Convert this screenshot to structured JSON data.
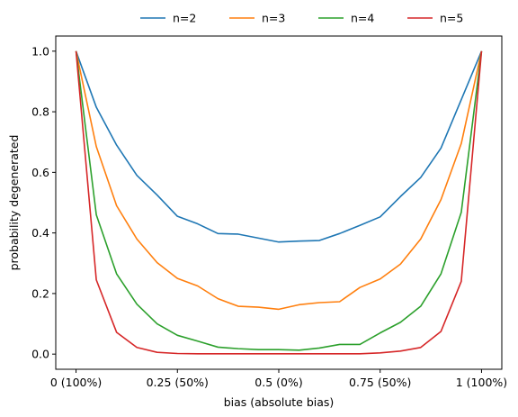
{
  "chart_data": {
    "type": "line",
    "title": "",
    "xlabel": "bias (absolute bias)",
    "ylabel": "probability degenerated",
    "xlim": [
      -0.05,
      1.05
    ],
    "ylim": [
      -0.05,
      1.05
    ],
    "xticks": [
      {
        "value": 0,
        "label": "0 (100%)"
      },
      {
        "value": 0.25,
        "label": "0.25 (50%)"
      },
      {
        "value": 0.5,
        "label": "0.5 (0%)"
      },
      {
        "value": 0.75,
        "label": "0.75 (50%)"
      },
      {
        "value": 1,
        "label": "1 (100%)"
      }
    ],
    "yticks": [
      {
        "value": 0,
        "label": "0.0"
      },
      {
        "value": 0.2,
        "label": "0.2"
      },
      {
        "value": 0.4,
        "label": "0.4"
      },
      {
        "value": 0.6,
        "label": "0.6"
      },
      {
        "value": 0.8,
        "label": "0.8"
      },
      {
        "value": 1,
        "label": "1.0"
      }
    ],
    "grid": false,
    "legend_position": "top-center",
    "x": [
      0,
      0.05,
      0.1,
      0.15,
      0.2,
      0.25,
      0.3,
      0.35,
      0.4,
      0.45,
      0.5,
      0.55,
      0.6,
      0.65,
      0.7,
      0.75,
      0.8,
      0.85,
      0.9,
      0.95,
      1.0
    ],
    "series": [
      {
        "name": "n=2",
        "color": "#1f77b4",
        "values": [
          1.0,
          0.815,
          0.69,
          0.59,
          0.525,
          0.455,
          0.43,
          0.398,
          0.396,
          0.383,
          0.37,
          0.373,
          0.375,
          0.398,
          0.425,
          0.453,
          0.52,
          0.583,
          0.68,
          0.84,
          1.0
        ]
      },
      {
        "name": "n=3",
        "color": "#ff7f0e",
        "values": [
          1.0,
          0.685,
          0.49,
          0.38,
          0.302,
          0.25,
          0.225,
          0.183,
          0.158,
          0.155,
          0.148,
          0.163,
          0.17,
          0.173,
          0.22,
          0.248,
          0.297,
          0.38,
          0.51,
          0.695,
          1.0
        ]
      },
      {
        "name": "n=4",
        "color": "#2ca02c",
        "values": [
          1.0,
          0.46,
          0.265,
          0.165,
          0.1,
          0.062,
          0.043,
          0.023,
          0.018,
          0.015,
          0.015,
          0.013,
          0.02,
          0.032,
          0.032,
          0.07,
          0.105,
          0.158,
          0.265,
          0.468,
          1.0
        ]
      },
      {
        "name": "n=5",
        "color": "#d62728",
        "values": [
          1.0,
          0.245,
          0.072,
          0.022,
          0.006,
          0.002,
          0.001,
          0.001,
          0.001,
          0.001,
          0.001,
          0.001,
          0.001,
          0.001,
          0.001,
          0.004,
          0.01,
          0.022,
          0.075,
          0.24,
          1.0
        ]
      }
    ]
  }
}
